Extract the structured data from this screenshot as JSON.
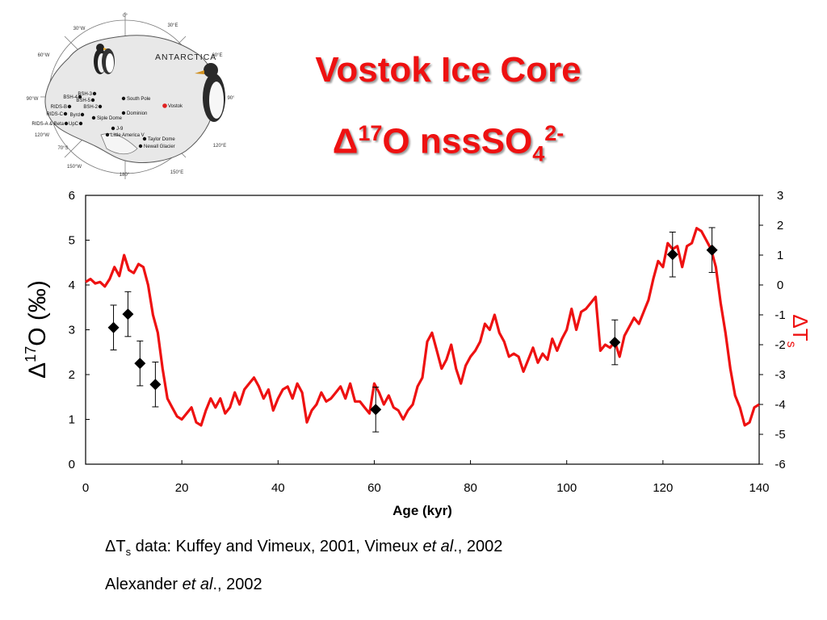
{
  "title": {
    "line1": "Vostok Ice Core",
    "line2_delta": "Δ",
    "line2_sup": "17",
    "line2_main": "O nssSO",
    "line2_sub": "4",
    "line2_charge": "2-"
  },
  "map": {
    "title": "ANTARCTICA",
    "longitudes": [
      "0°",
      "30°E",
      "60°E",
      "90°E",
      "120°E",
      "150°E",
      "180°",
      "150°W",
      "120°W",
      "90°W",
      "60°W",
      "30°W"
    ],
    "latitude_label": "70°S",
    "sites": [
      "BSH-3",
      "BSH-4",
      "BSH-5",
      "BSH-2",
      "RIDS-B",
      "RIDS-C",
      "Byrd",
      "RIDS-A & Beta",
      "UpC",
      "Siple Dome",
      "J-9",
      "Little America V",
      "South Pole",
      "Dominion",
      "Vostok",
      "Taylor Dome",
      "Newall Glacier"
    ],
    "highlight_color": "#e02020"
  },
  "chart_data": {
    "type": "line+scatter",
    "xlabel": "Age (kyr)",
    "ylabel_left": {
      "delta": "Δ",
      "sup": "17",
      "rest": "O (‰)"
    },
    "ylabel_right": {
      "delta": "Δ",
      "T": "T",
      "sub": "s"
    },
    "xlim": [
      0,
      140
    ],
    "ylim_left": [
      0,
      6
    ],
    "ylim_right": [
      -6,
      3
    ],
    "xticks": [
      "0",
      "20",
      "40",
      "60",
      "80",
      "100",
      "120",
      "140"
    ],
    "yticks_left": [
      "0",
      "1",
      "2",
      "3",
      "4",
      "5",
      "6"
    ],
    "yticks_right": [
      "-6",
      "-5",
      "-4",
      "-3",
      "-2",
      "-1",
      "0",
      "1",
      "2",
      "3"
    ],
    "series": [
      {
        "axis": "right",
        "color": "#ee1111",
        "points": [
          [
            0,
            0.1
          ],
          [
            1,
            0.2
          ],
          [
            2,
            0.05
          ],
          [
            3,
            0.1
          ],
          [
            4,
            -0.05
          ],
          [
            5,
            0.2
          ],
          [
            6,
            0.6
          ],
          [
            7,
            0.3
          ],
          [
            8,
            1.0
          ],
          [
            9,
            0.5
          ],
          [
            10,
            0.4
          ],
          [
            11,
            0.7
          ],
          [
            12,
            0.6
          ],
          [
            13,
            0
          ],
          [
            14,
            -1
          ],
          [
            15,
            -1.6
          ],
          [
            16,
            -2.8
          ],
          [
            17,
            -3.8
          ],
          [
            18,
            -4.1
          ],
          [
            19,
            -4.4
          ],
          [
            20,
            -4.5
          ],
          [
            21,
            -4.3
          ],
          [
            22,
            -4.1
          ],
          [
            23,
            -4.6
          ],
          [
            24,
            -4.7
          ],
          [
            25,
            -4.2
          ],
          [
            26,
            -3.8
          ],
          [
            27,
            -4.1
          ],
          [
            28,
            -3.8
          ],
          [
            29,
            -4.3
          ],
          [
            30,
            -4.1
          ],
          [
            31,
            -3.6
          ],
          [
            32,
            -4.0
          ],
          [
            33,
            -3.5
          ],
          [
            34,
            -3.3
          ],
          [
            35,
            -3.1
          ],
          [
            36,
            -3.4
          ],
          [
            37,
            -3.8
          ],
          [
            38,
            -3.5
          ],
          [
            39,
            -4.2
          ],
          [
            40,
            -3.8
          ],
          [
            41,
            -3.5
          ],
          [
            42,
            -3.4
          ],
          [
            43,
            -3.8
          ],
          [
            44,
            -3.3
          ],
          [
            45,
            -3.6
          ],
          [
            46,
            -4.6
          ],
          [
            47,
            -4.2
          ],
          [
            48,
            -4.0
          ],
          [
            49,
            -3.6
          ],
          [
            50,
            -3.9
          ],
          [
            51,
            -3.8
          ],
          [
            52,
            -3.6
          ],
          [
            53,
            -3.4
          ],
          [
            54,
            -3.8
          ],
          [
            55,
            -3.3
          ],
          [
            56,
            -3.9
          ],
          [
            57,
            -3.9
          ],
          [
            58,
            -4.1
          ],
          [
            59,
            -4.3
          ],
          [
            60,
            -3.3
          ],
          [
            61,
            -3.6
          ],
          [
            62,
            -4.0
          ],
          [
            63,
            -3.7
          ],
          [
            64,
            -4.1
          ],
          [
            65,
            -4.2
          ],
          [
            66,
            -4.5
          ],
          [
            67,
            -4.2
          ],
          [
            68,
            -4.0
          ],
          [
            69,
            -3.4
          ],
          [
            70,
            -3.1
          ],
          [
            71,
            -1.9
          ],
          [
            72,
            -1.6
          ],
          [
            73,
            -2.2
          ],
          [
            74,
            -2.8
          ],
          [
            75,
            -2.5
          ],
          [
            76,
            -2.0
          ],
          [
            77,
            -2.8
          ],
          [
            78,
            -3.3
          ],
          [
            79,
            -2.7
          ],
          [
            80,
            -2.4
          ],
          [
            81,
            -2.2
          ],
          [
            82,
            -1.9
          ],
          [
            83,
            -1.3
          ],
          [
            84,
            -1.5
          ],
          [
            85,
            -1.0
          ],
          [
            86,
            -1.6
          ],
          [
            87,
            -1.9
          ],
          [
            88,
            -2.4
          ],
          [
            89,
            -2.3
          ],
          [
            90,
            -2.4
          ],
          [
            91,
            -2.9
          ],
          [
            92,
            -2.5
          ],
          [
            93,
            -2.1
          ],
          [
            94,
            -2.6
          ],
          [
            95,
            -2.3
          ],
          [
            96,
            -2.5
          ],
          [
            97,
            -1.8
          ],
          [
            98,
            -2.2
          ],
          [
            99,
            -1.8
          ],
          [
            100,
            -1.5
          ],
          [
            101,
            -0.8
          ],
          [
            102,
            -1.5
          ],
          [
            103,
            -0.9
          ],
          [
            104,
            -0.8
          ],
          [
            105,
            -0.6
          ],
          [
            106,
            -0.4
          ],
          [
            107,
            -2.2
          ],
          [
            108,
            -2.0
          ],
          [
            109,
            -2.1
          ],
          [
            110,
            -1.9
          ],
          [
            111,
            -2.4
          ],
          [
            112,
            -1.7
          ],
          [
            113,
            -1.4
          ],
          [
            114,
            -1.1
          ],
          [
            115,
            -1.3
          ],
          [
            116,
            -0.9
          ],
          [
            117,
            -0.5
          ],
          [
            118,
            0.2
          ],
          [
            119,
            0.8
          ],
          [
            120,
            0.6
          ],
          [
            121,
            1.4
          ],
          [
            122,
            1.2
          ],
          [
            123,
            1.3
          ],
          [
            124,
            0.6
          ],
          [
            125,
            1.3
          ],
          [
            126,
            1.4
          ],
          [
            127,
            1.9
          ],
          [
            128,
            1.8
          ],
          [
            129,
            1.5
          ],
          [
            130,
            1.2
          ],
          [
            131,
            0.6
          ],
          [
            132,
            -0.6
          ],
          [
            133,
            -1.6
          ],
          [
            134,
            -2.8
          ],
          [
            135,
            -3.7
          ],
          [
            136,
            -4.1
          ],
          [
            137,
            -4.7
          ],
          [
            138,
            -4.6
          ],
          [
            139,
            -4.1
          ],
          [
            140,
            -4.0
          ]
        ]
      },
      {
        "axis": "left",
        "marker": "diamond",
        "color": "#000000",
        "points": [
          {
            "x": 5.8,
            "y": 3.05,
            "err": 0.5
          },
          {
            "x": 8.8,
            "y": 3.35,
            "err": 0.5
          },
          {
            "x": 11.3,
            "y": 2.25,
            "err": 0.5
          },
          {
            "x": 14.5,
            "y": 1.78,
            "err": 0.5
          },
          {
            "x": 60.3,
            "y": 1.22,
            "err": 0.5
          },
          {
            "x": 110.0,
            "y": 2.72,
            "err": 0.5
          },
          {
            "x": 122.0,
            "y": 4.68,
            "err": 0.5
          },
          {
            "x": 130.2,
            "y": 4.78,
            "err": 0.5
          }
        ]
      }
    ]
  },
  "caption": {
    "line1_delta": "Δ",
    "line1_T": "T",
    "line1_sub": "s",
    "line1_text": " data: Kuffey and Vimeux, 2001, Vimeux ",
    "line1_italic": "et al",
    "line1_end": "., 2002",
    "line2_text": "Alexander ",
    "line2_italic": "et al",
    "line2_end": "., 2002"
  }
}
